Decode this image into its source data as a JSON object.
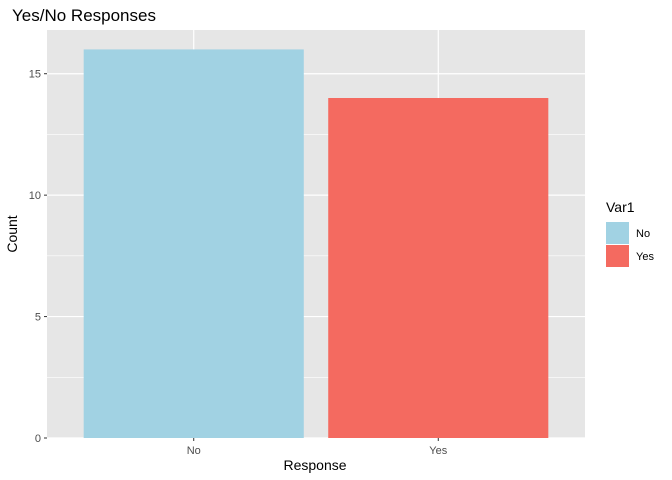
{
  "chart_data": {
    "type": "bar",
    "title": "Yes/No Responses",
    "xlabel": "Response",
    "ylabel": "Count",
    "categories": [
      "No",
      "Yes"
    ],
    "values": [
      16,
      14
    ],
    "colors": [
      "#a1d2e3",
      "#f46a60"
    ],
    "ylim": [
      0,
      16.8
    ],
    "yticks": [
      0,
      5,
      10,
      15
    ],
    "grid": true,
    "panel_background": "#e6e6e6",
    "grid_color": "#ffffff",
    "legend": {
      "title": "Var1",
      "placement": "right",
      "entries": [
        "No",
        "Yes"
      ]
    }
  }
}
